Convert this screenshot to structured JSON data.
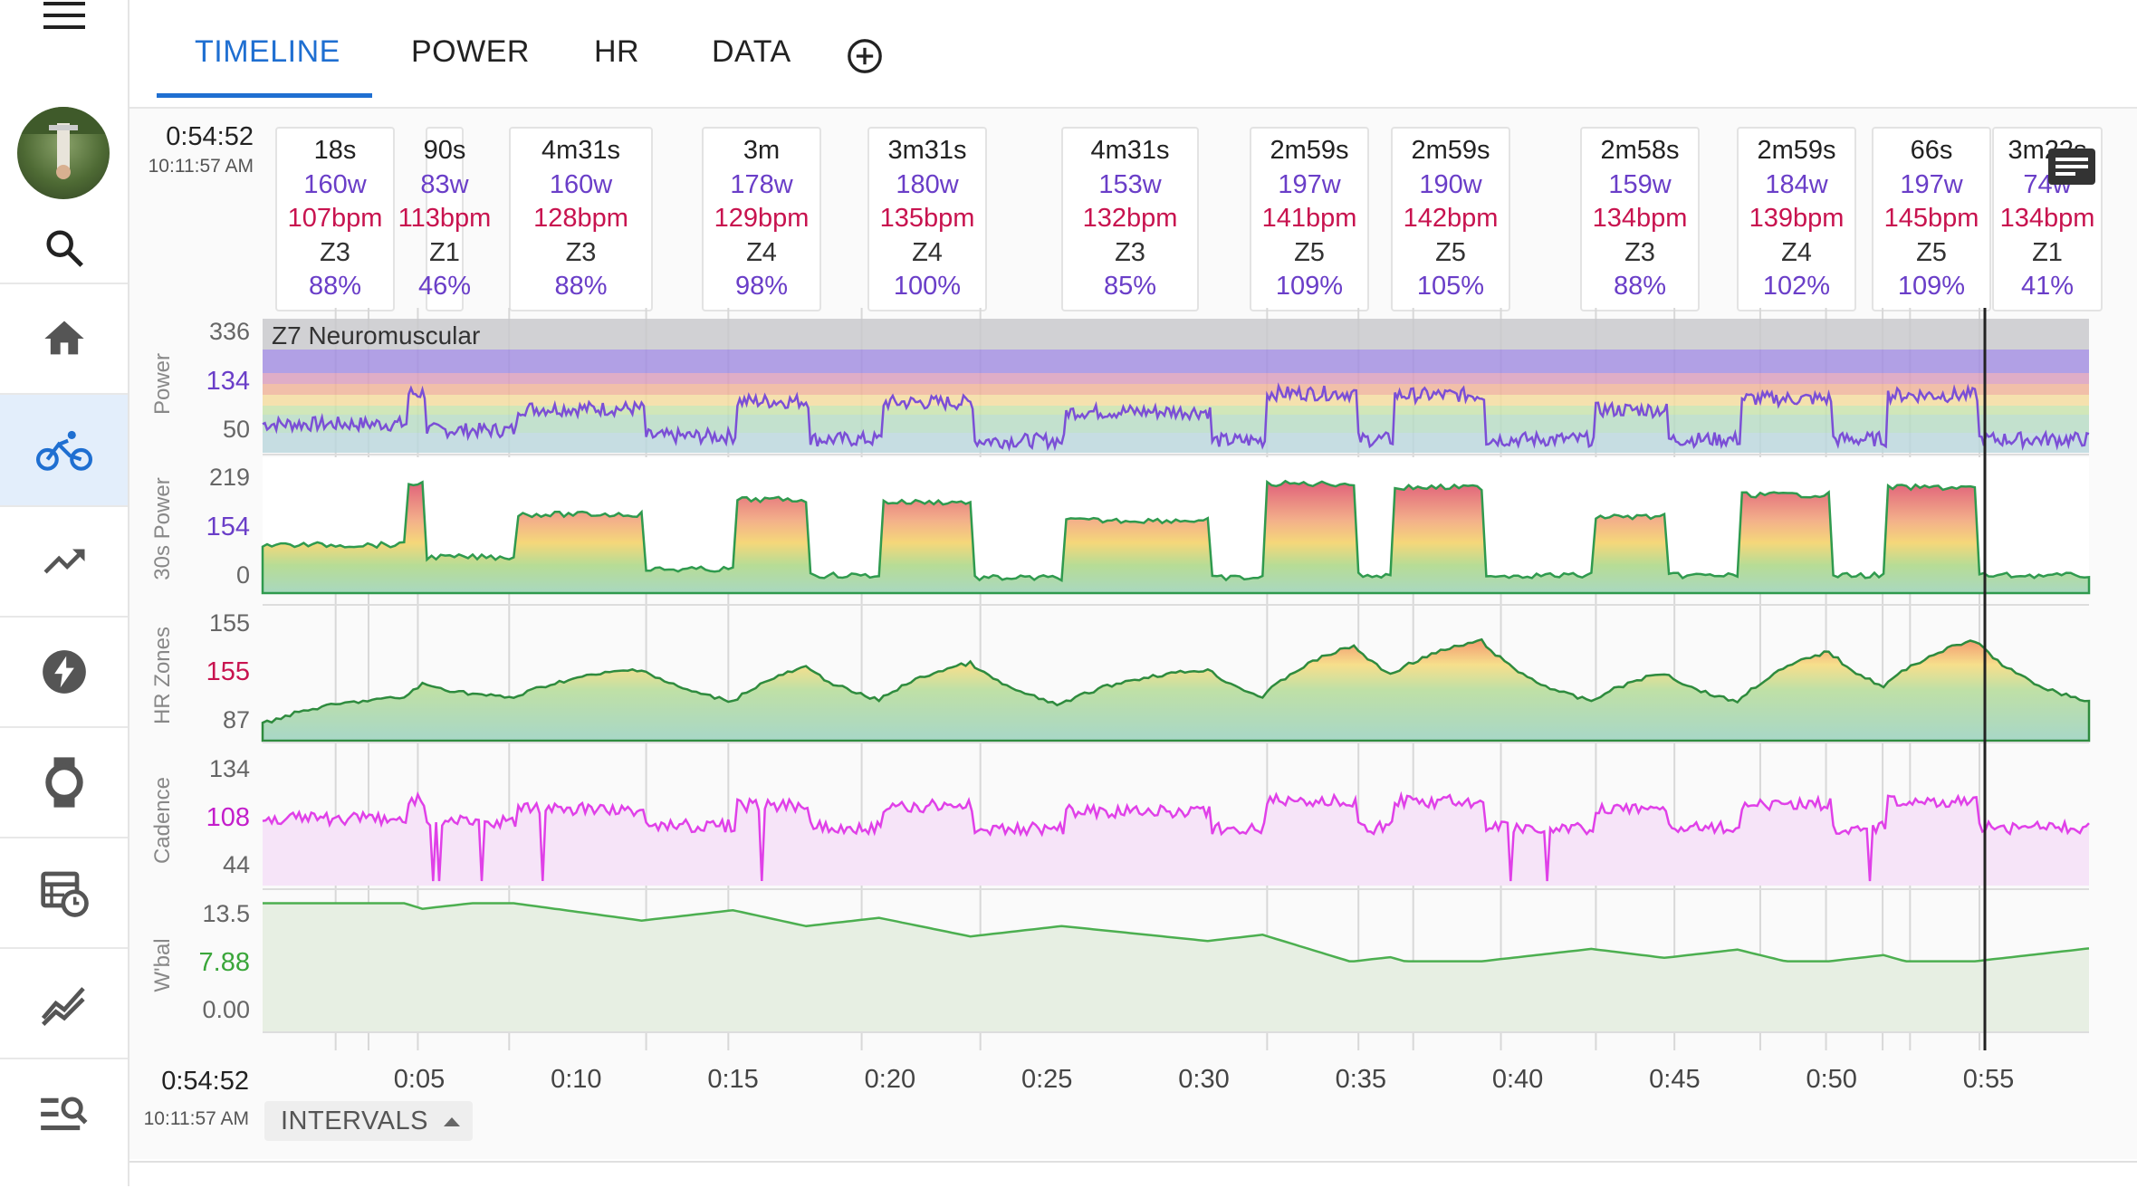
{
  "sidebar": {
    "items": [
      {
        "name": "menu-icon"
      },
      {
        "name": "search-icon"
      },
      {
        "name": "home-icon"
      },
      {
        "name": "bike-icon",
        "active": true
      },
      {
        "name": "trending-icon"
      },
      {
        "name": "bolt-icon"
      },
      {
        "name": "watch-icon"
      },
      {
        "name": "calendar-clock-icon"
      },
      {
        "name": "multiline-chart-icon"
      },
      {
        "name": "list-search-icon"
      }
    ]
  },
  "tabs": {
    "items": [
      "TIMELINE",
      "POWER",
      "HR",
      "DATA"
    ],
    "active": "TIMELINE",
    "add_icon": "add-circle-icon"
  },
  "header": {
    "elapsed": "0:54:52",
    "clock": "10:11:57 AM",
    "notes_icon": "notes-icon"
  },
  "intervals": [
    {
      "duration": "18s",
      "watts": "160w",
      "hr": "107bpm",
      "zone": "Z3",
      "pct": "88%"
    },
    {
      "duration": "90s",
      "watts": "83w",
      "hr": "113bpm",
      "zone": "Z1",
      "pct": "46%"
    },
    {
      "duration": "4m31s",
      "watts": "160w",
      "hr": "128bpm",
      "zone": "Z3",
      "pct": "88%"
    },
    {
      "duration": "3m",
      "watts": "178w",
      "hr": "129bpm",
      "zone": "Z4",
      "pct": "98%"
    },
    {
      "duration": "3m31s",
      "watts": "180w",
      "hr": "135bpm",
      "zone": "Z4",
      "pct": "100%"
    },
    {
      "duration": "4m31s",
      "watts": "153w",
      "hr": "132bpm",
      "zone": "Z3",
      "pct": "85%"
    },
    {
      "duration": "2m59s",
      "watts": "197w",
      "hr": "141bpm",
      "zone": "Z5",
      "pct": "109%"
    },
    {
      "duration": "2m59s",
      "watts": "190w",
      "hr": "142bpm",
      "zone": "Z5",
      "pct": "105%"
    },
    {
      "duration": "2m58s",
      "watts": "159w",
      "hr": "134bpm",
      "zone": "Z3",
      "pct": "88%"
    },
    {
      "duration": "2m59s",
      "watts": "184w",
      "hr": "139bpm",
      "zone": "Z4",
      "pct": "102%"
    },
    {
      "duration": "66s",
      "watts": "197w",
      "hr": "145bpm",
      "zone": "Z5",
      "pct": "109%"
    },
    {
      "duration": "3m22s",
      "watts": "74w",
      "hr": "134bpm",
      "zone": "Z1",
      "pct": "41%"
    }
  ],
  "charts": {
    "power": {
      "label": "Power",
      "ticks": [
        "336",
        "134",
        "50"
      ],
      "zone_label": "Z7 Neuromuscular"
    },
    "power30": {
      "label": "30s Power",
      "ticks": [
        "219",
        "154",
        "0"
      ]
    },
    "hr": {
      "label": "HR Zones",
      "ticks": [
        "155",
        "155",
        "87"
      ]
    },
    "cadence": {
      "label": "Cadence",
      "ticks": [
        "134",
        "108",
        "44"
      ]
    },
    "wbal": {
      "label": "W'bal",
      "ticks": [
        "13.5",
        "7.88",
        "0.00"
      ]
    }
  },
  "xaxis": {
    "ticks": [
      "0:05",
      "0:10",
      "0:15",
      "0:20",
      "0:25",
      "0:30",
      "0:35",
      "0:40",
      "0:45",
      "0:50",
      "0:55"
    ]
  },
  "footer": {
    "elapsed": "0:54:52",
    "clock": "10:11:57 AM",
    "intervals_label": "INTERVALS"
  },
  "colors": {
    "accent": "#1f6fd1",
    "power_line": "#7b4fd6",
    "watts_text": "#6a3ec8",
    "bpm_text": "#c8134f",
    "cadence": "#e040e8",
    "wbal": "#4caf50",
    "wbal_tick": "#3aa63a",
    "hr_tick": "#c8134f"
  }
}
